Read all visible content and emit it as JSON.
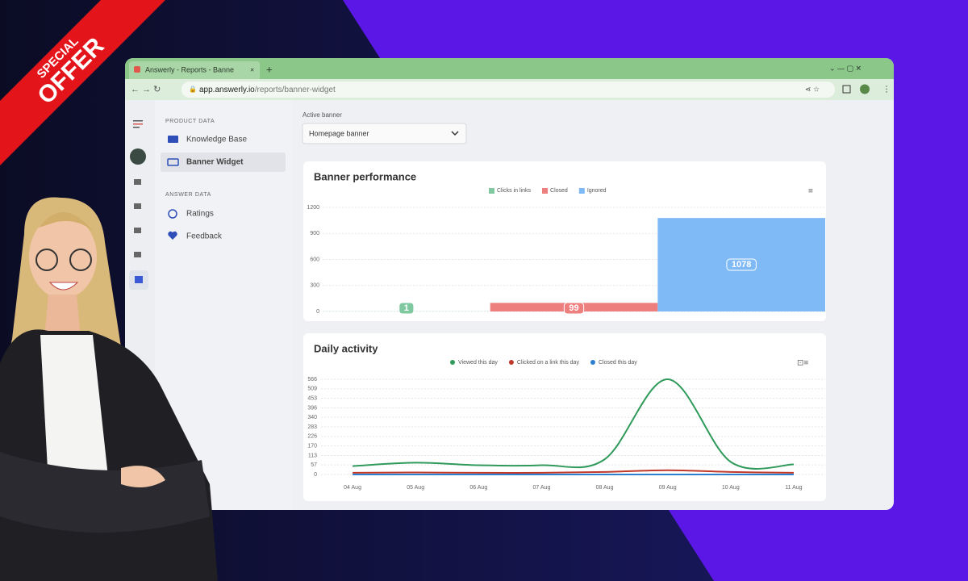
{
  "ribbon": {
    "line1": "SPECIAL",
    "line2": "OFFER"
  },
  "browser": {
    "tab_title": "Answerly - Reports - Banne",
    "url_host": "app.answerly.io",
    "url_path": "/reports/banner-widget"
  },
  "sidebar": {
    "sections": [
      {
        "heading": "PRODUCT DATA",
        "items": [
          "Knowledge Base",
          "Banner Widget"
        ]
      },
      {
        "heading": "ANSWER DATA",
        "items": [
          "Ratings",
          "Feedback"
        ]
      }
    ]
  },
  "active_banner": {
    "label": "Active banner",
    "value": "Homepage banner"
  },
  "banner_performance": {
    "type": "bar",
    "title": "Banner performance",
    "categories": [
      "Clicks in links",
      "Closed",
      "Ignored"
    ],
    "values": [
      1,
      99,
      1078
    ],
    "colors": [
      "#7fc8a0",
      "#ee7f7f",
      "#7fbaf7"
    ],
    "ylim": [
      0,
      1200
    ],
    "yticks": [
      0,
      300,
      600,
      900,
      1200
    ],
    "grid": true
  },
  "daily_activity": {
    "type": "line",
    "title": "Daily activity",
    "x": [
      "04 Aug",
      "05 Aug",
      "06 Aug",
      "07 Aug",
      "08 Aug",
      "09 Aug",
      "10 Aug",
      "11 Aug"
    ],
    "series": [
      {
        "name": "Viewed this day",
        "color": "#2f9a5a",
        "values": [
          50,
          70,
          55,
          55,
          90,
          566,
          75,
          60
        ]
      },
      {
        "name": "Clicked on a link this day",
        "color": "#c0392b",
        "values": [
          10,
          12,
          10,
          10,
          15,
          25,
          15,
          10
        ]
      },
      {
        "name": "Closed this day",
        "color": "#2d7fd0",
        "values": [
          0,
          0,
          0,
          0,
          0,
          0,
          0,
          0
        ]
      }
    ],
    "ylim": [
      0,
      566
    ],
    "yticks": [
      0,
      57,
      113,
      170,
      226,
      283,
      340,
      396,
      453,
      509,
      566
    ],
    "grid": true
  }
}
